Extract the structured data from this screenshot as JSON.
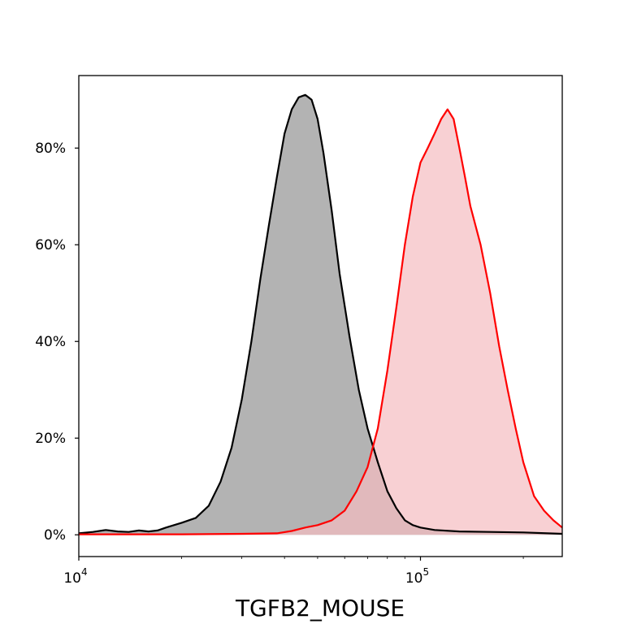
{
  "chart_data": {
    "type": "area",
    "title": "",
    "xlabel": "TGFB2_MOUSE",
    "ylabel": "",
    "x_scale": "log",
    "xlim": [
      10000,
      260000
    ],
    "ylim": [
      -4.5,
      95
    ],
    "x_ticks": [
      {
        "value": 10000,
        "base": "10",
        "exp": "4"
      },
      {
        "value": 100000,
        "base": "10",
        "exp": "5"
      }
    ],
    "y_ticks": [
      {
        "value": 0,
        "label": "0%"
      },
      {
        "value": 20,
        "label": "20%"
      },
      {
        "value": 40,
        "label": "40%"
      },
      {
        "value": 60,
        "label": "60%"
      },
      {
        "value": 80,
        "label": "80%"
      }
    ],
    "grid": false,
    "series": [
      {
        "line_color": "#000000",
        "fill_color": "#b3b3b3",
        "points": [
          [
            10000,
            0.3
          ],
          [
            11000,
            0.6
          ],
          [
            12000,
            1.0
          ],
          [
            13000,
            0.7
          ],
          [
            14000,
            0.6
          ],
          [
            15000,
            0.9
          ],
          [
            16000,
            0.7
          ],
          [
            17000,
            0.9
          ],
          [
            18000,
            1.5
          ],
          [
            20000,
            2.5
          ],
          [
            22000,
            3.5
          ],
          [
            24000,
            6
          ],
          [
            26000,
            11
          ],
          [
            28000,
            18
          ],
          [
            30000,
            28
          ],
          [
            32000,
            40
          ],
          [
            34000,
            53
          ],
          [
            36000,
            64
          ],
          [
            38000,
            74
          ],
          [
            40000,
            83
          ],
          [
            42000,
            88
          ],
          [
            44000,
            90.5
          ],
          [
            46000,
            91
          ],
          [
            48000,
            90
          ],
          [
            50000,
            86
          ],
          [
            52000,
            79
          ],
          [
            55000,
            67
          ],
          [
            58000,
            54
          ],
          [
            62000,
            41
          ],
          [
            66000,
            30
          ],
          [
            70000,
            22
          ],
          [
            75000,
            15
          ],
          [
            80000,
            9
          ],
          [
            85000,
            5.5
          ],
          [
            90000,
            3
          ],
          [
            95000,
            2
          ],
          [
            100000,
            1.5
          ],
          [
            110000,
            1.0
          ],
          [
            130000,
            0.7
          ],
          [
            160000,
            0.6
          ],
          [
            200000,
            0.5
          ],
          [
            260000,
            0.2
          ]
        ]
      },
      {
        "line_color": "#ff0000",
        "fill_color": "#f5bcc0",
        "points": [
          [
            10000,
            0.1
          ],
          [
            20000,
            0.1
          ],
          [
            30000,
            0.2
          ],
          [
            38000,
            0.3
          ],
          [
            42000,
            0.8
          ],
          [
            46000,
            1.5
          ],
          [
            50000,
            2
          ],
          [
            55000,
            3
          ],
          [
            60000,
            5
          ],
          [
            65000,
            9
          ],
          [
            70000,
            14
          ],
          [
            75000,
            22
          ],
          [
            80000,
            34
          ],
          [
            85000,
            47
          ],
          [
            90000,
            60
          ],
          [
            95000,
            70
          ],
          [
            100000,
            77
          ],
          [
            105000,
            80
          ],
          [
            110000,
            83
          ],
          [
            115000,
            86
          ],
          [
            120000,
            88
          ],
          [
            125000,
            86
          ],
          [
            130000,
            80
          ],
          [
            135000,
            74
          ],
          [
            140000,
            68
          ],
          [
            150000,
            60
          ],
          [
            160000,
            50
          ],
          [
            170000,
            39
          ],
          [
            180000,
            30
          ],
          [
            190000,
            22
          ],
          [
            200000,
            15
          ],
          [
            215000,
            8
          ],
          [
            230000,
            5
          ],
          [
            245000,
            3
          ],
          [
            260000,
            1.5
          ]
        ]
      }
    ]
  }
}
